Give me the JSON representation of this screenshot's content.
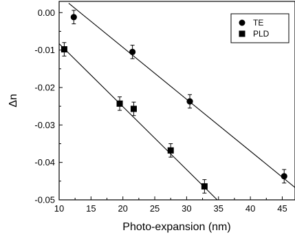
{
  "chart_data": {
    "type": "scatter",
    "xlabel": "Photo-expansion (nm)",
    "ylabel": "Δn",
    "xlim": [
      10,
      47
    ],
    "ylim": [
      -0.05,
      0.003
    ],
    "xticks": [
      10,
      15,
      20,
      25,
      30,
      35,
      40,
      45
    ],
    "xtick_labels": [
      "10",
      "15",
      "20",
      "25",
      "30",
      "35",
      "40",
      "45"
    ],
    "yticks": [
      0.0,
      -0.01,
      -0.02,
      -0.03,
      -0.04,
      -0.05
    ],
    "ytick_labels": [
      "0.00",
      "-0.01",
      "-0.02",
      "-0.03",
      "-0.04",
      "-0.05"
    ],
    "grid": false,
    "legend_position": "top-right",
    "series": [
      {
        "name": "TE",
        "marker": "circle",
        "x": [
          12.3,
          21.5,
          30.5,
          45.3
        ],
        "y": [
          -0.0012,
          -0.0105,
          -0.0237,
          -0.0437
        ],
        "yerr": [
          0.0018,
          0.0018,
          0.0018,
          0.0018
        ],
        "fit": {
          "x": [
            11.5,
            47
          ],
          "y": [
            0.0025,
            -0.0467
          ]
        }
      },
      {
        "name": "PLD",
        "marker": "square",
        "x": [
          10.8,
          19.5,
          21.7,
          27.5,
          32.8
        ],
        "y": [
          -0.0098,
          -0.0243,
          -0.0257,
          -0.0368,
          -0.0464
        ],
        "yerr": [
          0.0018,
          0.0018,
          0.0018,
          0.0018,
          0.0018
        ],
        "fit": {
          "x": [
            10,
            34.8
          ],
          "y": [
            -0.0083,
            -0.05
          ]
        }
      }
    ],
    "colors": {
      "marker": "#000000",
      "line": "#000000",
      "axis": "#000000"
    }
  }
}
